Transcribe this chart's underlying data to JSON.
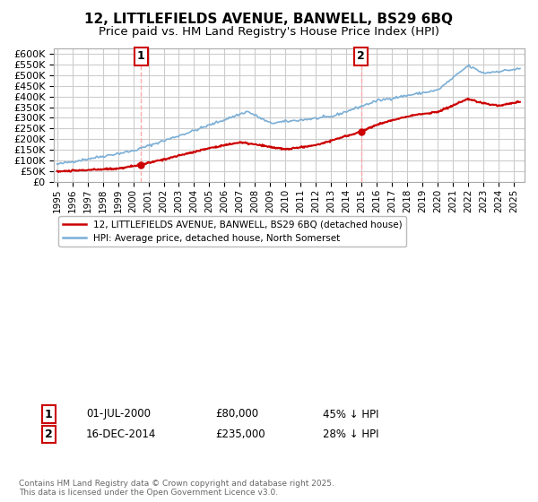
{
  "title_line1": "12, LITTLEFIELDS AVENUE, BANWELL, BS29 6BQ",
  "title_line2": "Price paid vs. HM Land Registry's House Price Index (HPI)",
  "ytick_values": [
    0,
    50000,
    100000,
    150000,
    200000,
    250000,
    300000,
    350000,
    400000,
    450000,
    500000,
    550000,
    600000
  ],
  "ylim": [
    0,
    625000
  ],
  "xlim_start": 1994.8,
  "xlim_end": 2025.7,
  "xtick_years": [
    1995,
    1996,
    1997,
    1998,
    1999,
    2000,
    2001,
    2002,
    2003,
    2004,
    2005,
    2006,
    2007,
    2008,
    2009,
    2010,
    2011,
    2012,
    2013,
    2014,
    2015,
    2016,
    2017,
    2018,
    2019,
    2020,
    2021,
    2022,
    2023,
    2024,
    2025
  ],
  "purchase1_x": 2000.5,
  "purchase1_y": 80000,
  "purchase1_label": "1",
  "purchase1_date": "01-JUL-2000",
  "purchase1_price": "£80,000",
  "purchase1_hpi": "45% ↓ HPI",
  "purchase2_x": 2014.96,
  "purchase2_y": 235000,
  "purchase2_label": "2",
  "purchase2_date": "16-DEC-2014",
  "purchase2_price": "£235,000",
  "purchase2_hpi": "28% ↓ HPI",
  "red_color": "#cc0000",
  "blue_color": "#7aaed6",
  "vline_color": "#ffaaaa",
  "bg_color": "#ffffff",
  "grid_color": "#cccccc",
  "legend_label_red": "12, LITTLEFIELDS AVENUE, BANWELL, BS29 6BQ (detached house)",
  "legend_label_blue": "HPI: Average price, detached house, North Somerset",
  "footer": "Contains HM Land Registry data © Crown copyright and database right 2025.\nThis data is licensed under the Open Government Licence v3.0.",
  "title_fontsize": 11,
  "subtitle_fontsize": 9.5
}
